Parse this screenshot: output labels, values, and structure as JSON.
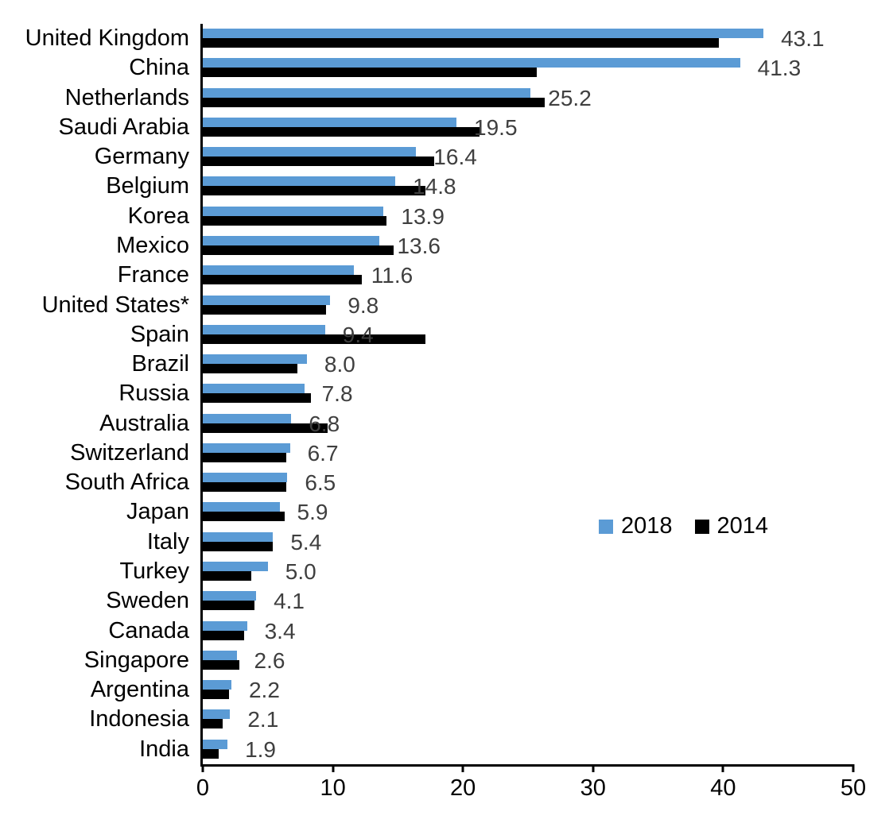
{
  "chart_data": {
    "type": "bar",
    "orientation": "horizontal",
    "title": "",
    "xlabel": "",
    "ylabel": "",
    "xlim": [
      0,
      50
    ],
    "x_ticks": [
      "0",
      "10",
      "20",
      "30",
      "40",
      "50"
    ],
    "grid": false,
    "legend_position": "middle-right",
    "categories": [
      "United Kingdom",
      "China",
      "Netherlands",
      "Saudi Arabia",
      "Germany",
      "Belgium",
      "Korea",
      "Mexico",
      "France",
      "United States*",
      "Spain",
      "Brazil",
      "Russia",
      "Australia",
      "Switzerland",
      "South Africa",
      "Japan",
      "Italy",
      "Turkey",
      "Sweden",
      "Canada",
      "Singapore",
      "Argentina",
      "Indonesia",
      "India"
    ],
    "series": [
      {
        "name": "2018",
        "color": "#5B9BD5",
        "values": [
          43.1,
          41.3,
          25.2,
          19.5,
          16.4,
          14.8,
          13.9,
          13.6,
          11.6,
          9.8,
          9.4,
          8.0,
          7.8,
          6.8,
          6.7,
          6.5,
          5.9,
          5.4,
          5.0,
          4.1,
          3.4,
          2.6,
          2.2,
          2.1,
          1.9
        ]
      },
      {
        "name": "2014",
        "color": "#000000",
        "values": [
          39.7,
          25.7,
          26.3,
          21.3,
          17.8,
          17.1,
          14.1,
          14.7,
          12.2,
          9.5,
          17.1,
          7.3,
          8.3,
          9.6,
          6.4,
          6.4,
          6.3,
          5.4,
          3.7,
          4.0,
          3.2,
          2.8,
          2.0,
          1.5,
          1.2
        ]
      }
    ],
    "data_labels": [
      "43.1",
      "41.3",
      "25.2",
      "19.5",
      "16.4",
      "14.8",
      "13.9",
      "13.6",
      "11.6",
      "9.8",
      "9.4",
      "8.0",
      "7.8",
      "6.8",
      "6.7",
      "6.5",
      "5.9",
      "5.4",
      "5.0",
      "4.1",
      "3.4",
      "2.6",
      "2.2",
      "2.1",
      "1.9"
    ],
    "data_label_series": "2018",
    "data_label_color": "#3f3f3f"
  }
}
